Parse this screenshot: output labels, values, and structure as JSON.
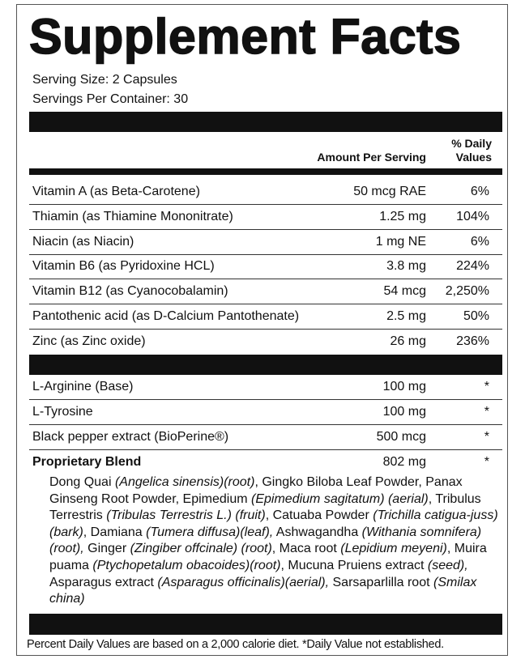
{
  "title": "Supplement Facts",
  "serving_size": "Serving Size: 2 Capsules",
  "servings_per_container": "Servings Per Container: 30",
  "headers": {
    "amount": "Amount Per Serving",
    "dv_line1": "% Daily",
    "dv_line2": "Values"
  },
  "vitamins": [
    {
      "name": "Vitamin A (as Beta-Carotene)",
      "amount": "50 mcg RAE",
      "dv": "6%"
    },
    {
      "name": "Thiamin (as Thiamine Mononitrate)",
      "amount": "1.25 mg",
      "dv": "104%"
    },
    {
      "name": "Niacin (as Niacin)",
      "amount": "1 mg NE",
      "dv": "6%"
    },
    {
      "name": "Vitamin B6 (as Pyridoxine HCL)",
      "amount": "3.8 mg",
      "dv": "224%"
    },
    {
      "name": "Vitamin B12 (as Cyanocobalamin)",
      "amount": "54 mcg",
      "dv": "2,250%"
    },
    {
      "name": "Pantothenic acid (as D-Calcium Pantothenate)",
      "amount": "2.5 mg",
      "dv": "50%"
    },
    {
      "name": "Zinc (as Zinc oxide)",
      "amount": "26 mg",
      "dv": "236%"
    }
  ],
  "others": [
    {
      "name": "L-Arginine (Base)",
      "amount": "100 mg",
      "dv": "*"
    },
    {
      "name": "L-Tyrosine",
      "amount": "100 mg",
      "dv": "*"
    },
    {
      "name": "Black pepper extract (BioPerine®)",
      "amount": "500 mcg",
      "dv": "*"
    },
    {
      "name": "Proprietary Blend",
      "amount": "802 mg",
      "dv": "*"
    }
  ],
  "blend_parts": [
    {
      "t": "Dong Quai ",
      "i": false
    },
    {
      "t": "(Angelica sinensis)(root)",
      "i": true
    },
    {
      "t": ", Gingko Biloba Leaf Powder, Panax Ginseng Root Powder, Epimedium ",
      "i": false
    },
    {
      "t": "(Epimedium sagitatum) (aerial)",
      "i": true
    },
    {
      "t": ", Tribulus Terrestris ",
      "i": false
    },
    {
      "t": "(Tribulas Terrestris L.) (fruit)",
      "i": true
    },
    {
      "t": ", Catuaba Powder ",
      "i": false
    },
    {
      "t": "(Trichilla catigua-juss)(bark)",
      "i": true
    },
    {
      "t": ",  Damiana ",
      "i": false
    },
    {
      "t": "(Tumera diffusa)(leaf),",
      "i": true
    },
    {
      "t": " Ashwagandha ",
      "i": false
    },
    {
      "t": "(Withania somnifera)(root),",
      "i": true
    },
    {
      "t": " Ginger ",
      "i": false
    },
    {
      "t": "(Zingiber offcinale) (root)",
      "i": true
    },
    {
      "t": ", Maca root ",
      "i": false
    },
    {
      "t": "(Lepidium meyeni)",
      "i": true
    },
    {
      "t": ", Muira puama ",
      "i": false
    },
    {
      "t": "(Ptychopetalum obacoides)(root)",
      "i": true
    },
    {
      "t": ", Mucuna Pruiens extract ",
      "i": false
    },
    {
      "t": "(seed),",
      "i": true
    },
    {
      "t": " Asparagus extract ",
      "i": false
    },
    {
      "t": "(Asparagus officinalis)(aerial),",
      "i": true
    },
    {
      "t": " Sarsaparlilla root ",
      "i": false
    },
    {
      "t": "(Smilax china)",
      "i": true
    }
  ],
  "footnote": "Percent Daily Values are based on a 2,000 calorie diet. *Daily Value not established."
}
